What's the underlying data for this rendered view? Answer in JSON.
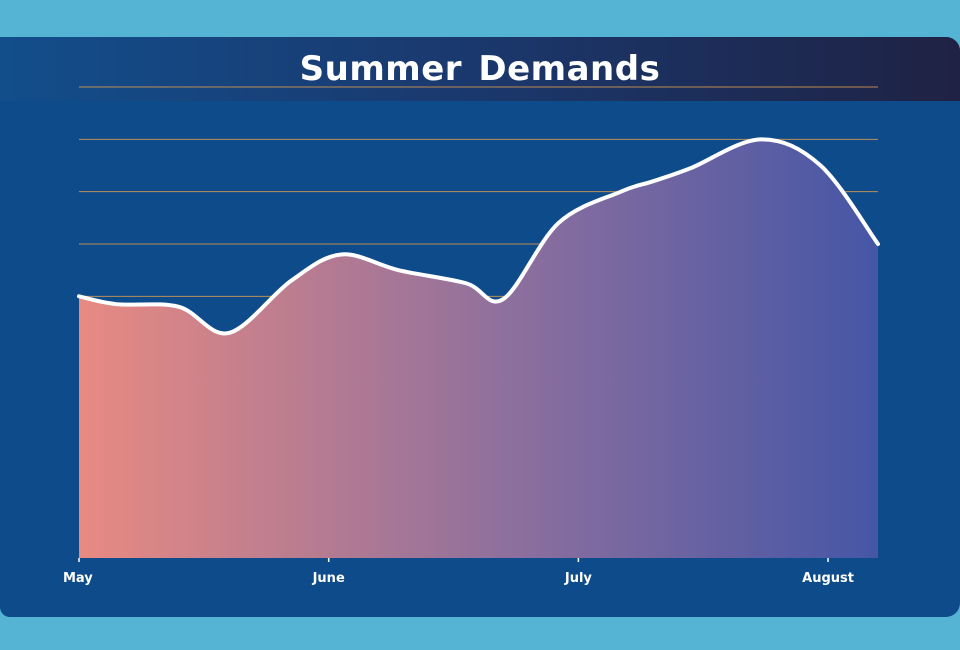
{
  "title": "Summer Demands",
  "chart_data": {
    "type": "area",
    "title": "Summer Demands",
    "xlabel": "",
    "ylabel": "",
    "tick_labels": [
      "May",
      "June",
      "July",
      "August"
    ],
    "tick_positions": [
      0,
      1,
      2,
      3
    ],
    "x": [
      0,
      0.15,
      0.4,
      0.6,
      0.85,
      1.05,
      1.28,
      1.55,
      1.7,
      1.92,
      2.17,
      2.3,
      2.45,
      2.73,
      2.97,
      3.2
    ],
    "y": [
      5.0,
      4.85,
      4.8,
      4.3,
      5.3,
      5.8,
      5.5,
      5.25,
      4.95,
      6.4,
      7.0,
      7.2,
      7.45,
      8.0,
      7.5,
      6.0
    ],
    "xlim": [
      0,
      3.2
    ],
    "ylim": [
      0,
      9
    ],
    "grid": true,
    "colors": {
      "line": "#ffffff",
      "fill_start": "#e88a82",
      "fill_mid": "#8c6f9e",
      "fill_end": "#4556a6",
      "grid": "#d99a4e",
      "panel": "#0e4b8a",
      "background": "#55b4d3"
    }
  }
}
